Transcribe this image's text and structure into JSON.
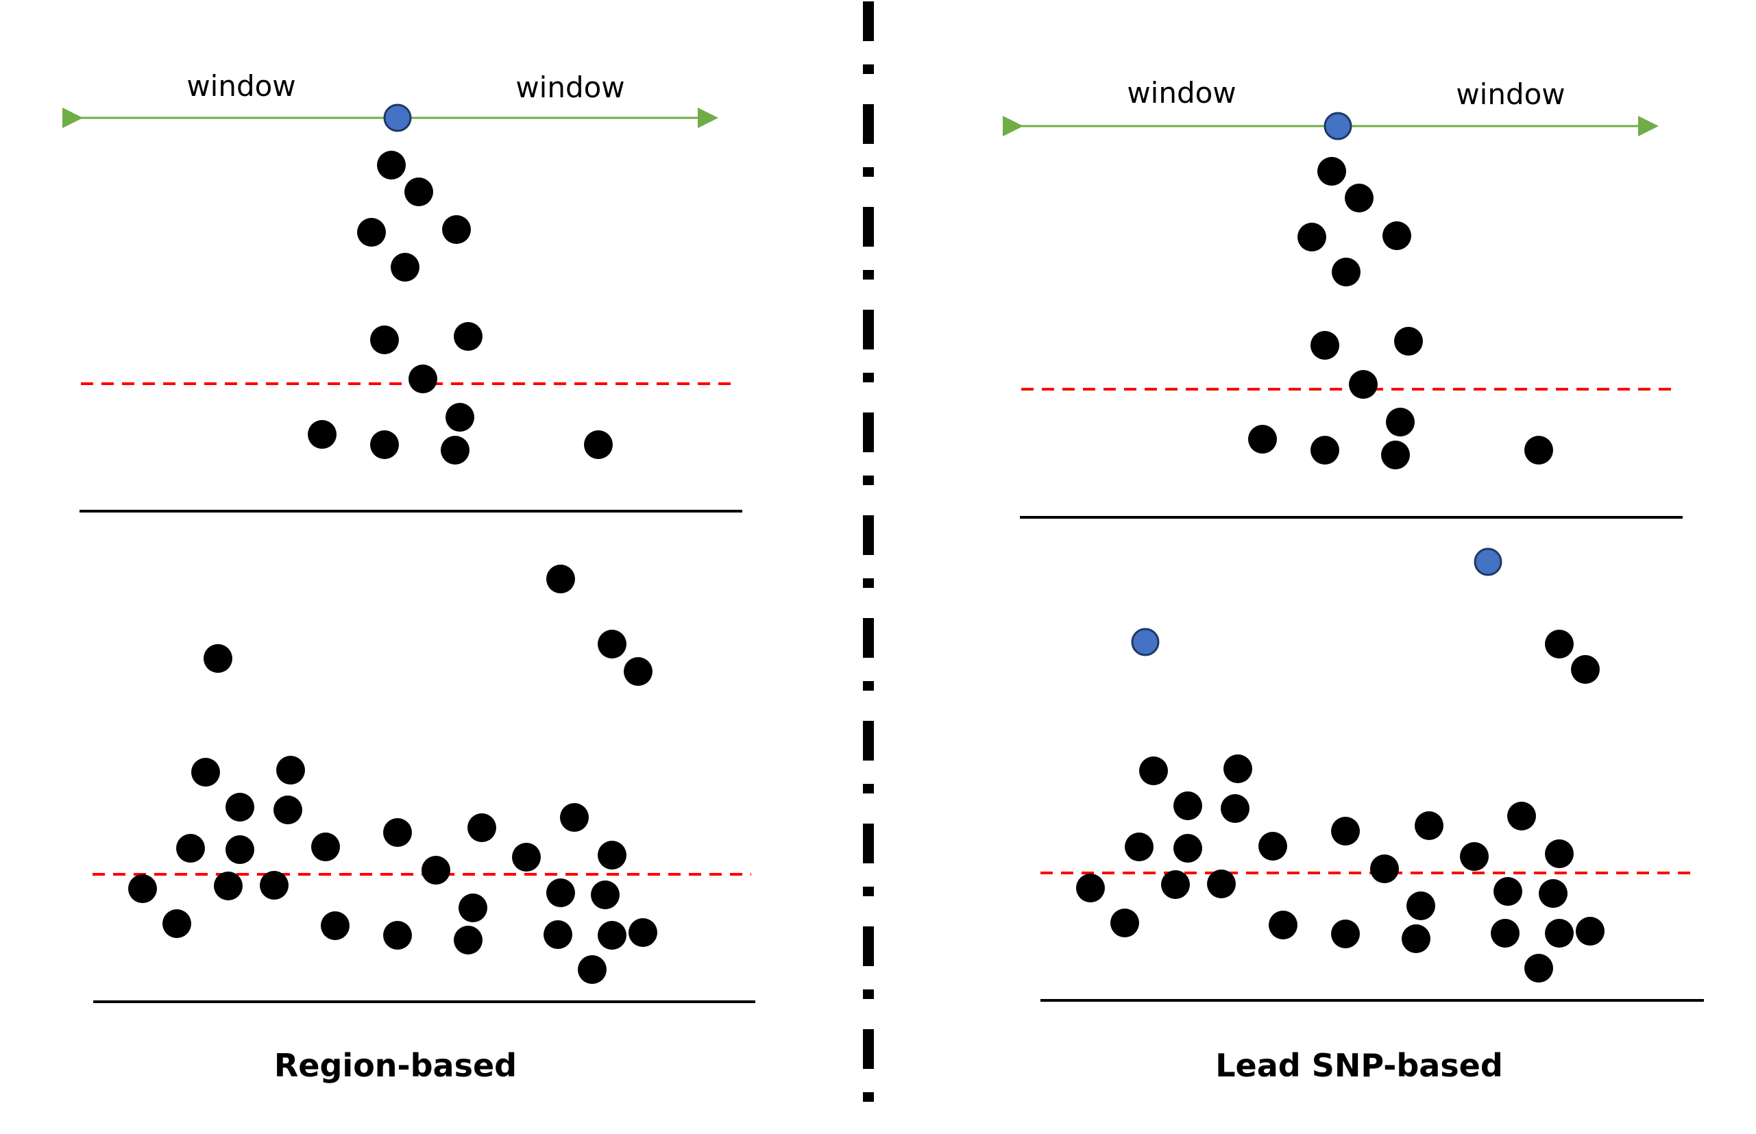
{
  "diagram": {
    "colors": {
      "snp": "#000000",
      "lead_snp": "#4472C4",
      "lead_snp_stroke": "#1F3864",
      "threshold_line": "#FF0000",
      "window_arrow": "#70AD47",
      "baseline": "#000000",
      "divider": "#000000"
    },
    "panels": [
      {
        "caption": "Region-based",
        "window_left_label": "window",
        "window_right_label": "window"
      },
      {
        "caption": "Lead SNP-based",
        "window_left_label": "window",
        "window_right_label": "window"
      }
    ]
  }
}
